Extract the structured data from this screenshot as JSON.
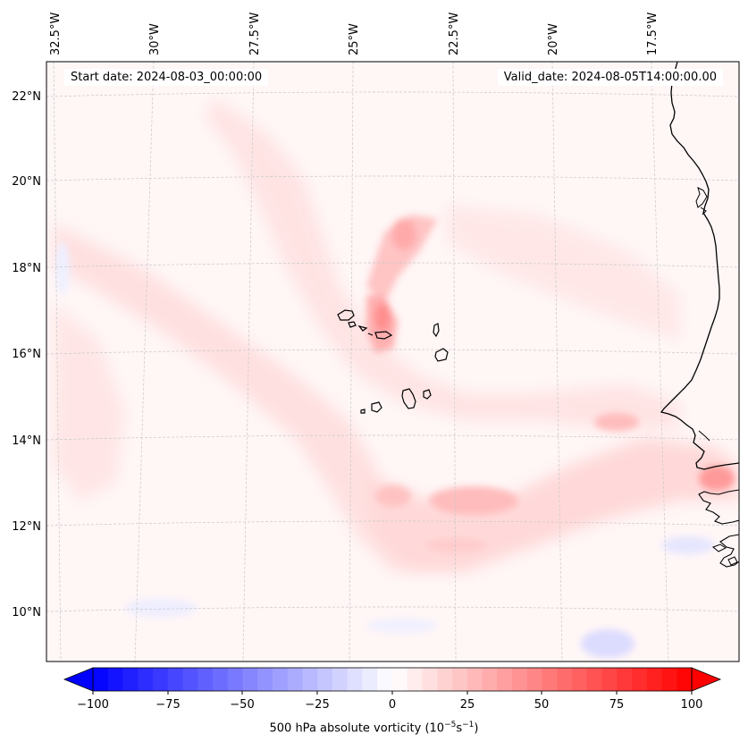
{
  "header": {
    "start_label": "Start date: 2024-08-03_00:00:00",
    "valid_label": "Valid_date: 2024-08-05T14:00:00.00"
  },
  "map": {
    "longitude_labels": [
      "32.5°W",
      "30°W",
      "27.5°W",
      "25°W",
      "22.5°W",
      "20°W",
      "17.5°W"
    ],
    "latitude_labels": [
      "22°N",
      "20°N",
      "18°N",
      "16°N",
      "14°N",
      "12°N",
      "10°N"
    ],
    "islands": [
      "cape-verde-island-santo-antao",
      "cape-verde-island-sao-vicente",
      "cape-verde-island-sao-nicolau",
      "cape-verde-island-sal",
      "cape-verde-island-boa-vista",
      "cape-verde-island-santiago",
      "cape-verde-island-fogo",
      "cape-verde-island-brava",
      "cape-verde-island-maio"
    ]
  },
  "colorbar": {
    "tick_labels": [
      "−100",
      "−75",
      "−50",
      "−25",
      "0",
      "25",
      "50",
      "75",
      "100"
    ],
    "title_main": "500 hPa absolute vorticity (10",
    "exp1": "−5",
    "mid": "s",
    "exp2": "−1",
    "close": ")",
    "min_color": "#0000ff",
    "max_color": "#ff0000"
  }
}
